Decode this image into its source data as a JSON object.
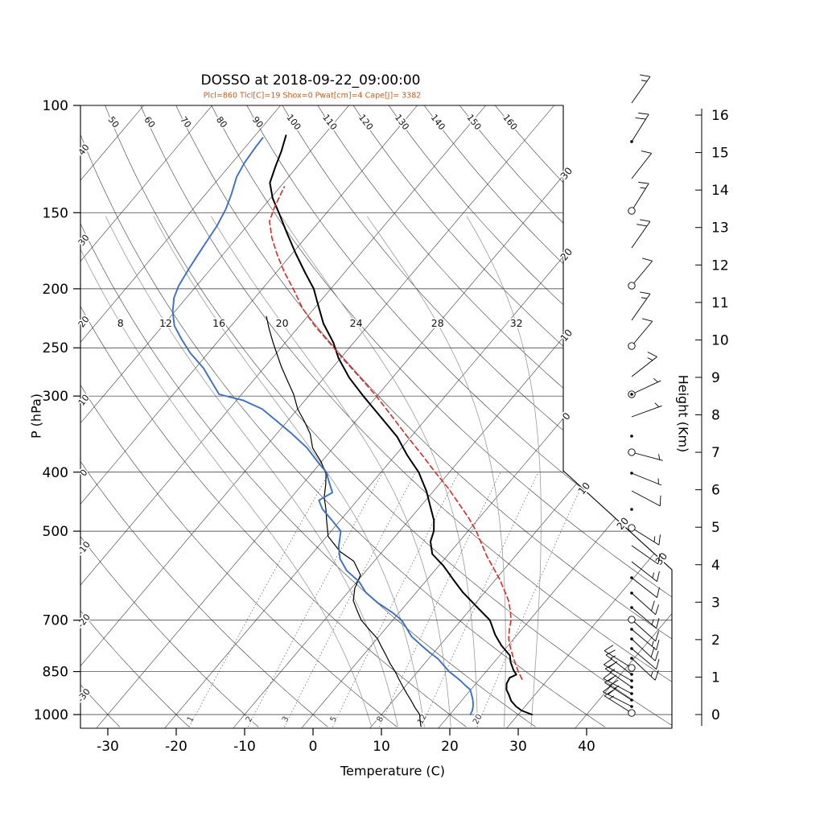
{
  "title": "DOSSO at 2018-09-22_09:00:00",
  "subtitle": "Plcl=860 Tlcl[C]=19 Shox=0 Pwat[cm]=4 Cape[J]= 3382",
  "axes": {
    "pressure_label": "P (hPa)",
    "temperature_label": "Temperature (C)",
    "height_label": "Height (Km)",
    "pressure_ticks": [
      100,
      150,
      200,
      250,
      300,
      400,
      500,
      700,
      850,
      1000
    ],
    "temperature_ticks": [
      -30,
      -20,
      -10,
      0,
      10,
      20,
      30,
      40
    ],
    "height_ticks": [
      0,
      1,
      2,
      3,
      4,
      5,
      6,
      7,
      8,
      9,
      10,
      11,
      12,
      13,
      14,
      15,
      16
    ]
  },
  "background": {
    "isotherm_step": 10,
    "isotherm_range": [
      -110,
      40
    ],
    "dry_adiabats_left_labels": [
      40,
      30,
      20,
      10,
      0,
      -10,
      -20,
      -30
    ],
    "dry_adiabats_top_labels": [
      50,
      60,
      70,
      80,
      90,
      100,
      110,
      120,
      130,
      140,
      150,
      160
    ],
    "isotherm_right_labels": [
      30,
      20,
      10,
      0
    ],
    "isotherm_diag_labels": [
      10,
      20,
      30
    ],
    "moist_adiabats": [
      8,
      12,
      16,
      20,
      24,
      28,
      32
    ],
    "mixing_ratios": [
      1,
      2,
      3,
      5,
      8,
      12,
      20
    ]
  },
  "colors": {
    "temperature": "#000000",
    "dewpoint": "#3d6fc3",
    "parcel": "#d52b2b",
    "wetbulb": "#000000",
    "subtitle": "#c65d1e",
    "grid": "#2b2b2b",
    "moist": "#9a9a9a",
    "mixing": "#555555"
  },
  "chart_data": {
    "type": "skewt",
    "station": "DOSSO",
    "datetime": "2018-09-22_09:00:00",
    "indices": {
      "Plcl": 860,
      "Tlcl_C": 19,
      "Shox": 0,
      "Pwat_cm": 4,
      "Cape_J": 3382
    },
    "temperature_profile": [
      [
        1000,
        32
      ],
      [
        985,
        30
      ],
      [
        970,
        28.7
      ],
      [
        950,
        27.3
      ],
      [
        930,
        26.3
      ],
      [
        910,
        25.2
      ],
      [
        890,
        24.5
      ],
      [
        870,
        24.2
      ],
      [
        860,
        24.8
      ],
      [
        845,
        23.8
      ],
      [
        820,
        22.4
      ],
      [
        800,
        21.5
      ],
      [
        770,
        19
      ],
      [
        740,
        16.8
      ],
      [
        700,
        14.2
      ],
      [
        665,
        10.6
      ],
      [
        630,
        6.8
      ],
      [
        600,
        3.8
      ],
      [
        570,
        0.7
      ],
      [
        545,
        -2.4
      ],
      [
        520,
        -4.2
      ],
      [
        500,
        -5
      ],
      [
        480,
        -6.3
      ],
      [
        455,
        -8.6
      ],
      [
        430,
        -11
      ],
      [
        400,
        -14.5
      ],
      [
        375,
        -18.3
      ],
      [
        350,
        -22
      ],
      [
        325,
        -26.8
      ],
      [
        300,
        -32
      ],
      [
        280,
        -36.3
      ],
      [
        260,
        -40.3
      ],
      [
        245,
        -43
      ],
      [
        228,
        -46.8
      ],
      [
        210,
        -50.4
      ],
      [
        200,
        -52.5
      ],
      [
        188,
        -55.8
      ],
      [
        175,
        -59.5
      ],
      [
        162,
        -63.3
      ],
      [
        150,
        -67
      ],
      [
        142,
        -69.7
      ],
      [
        134,
        -72
      ],
      [
        126,
        -73.2
      ],
      [
        119,
        -74.2
      ],
      [
        112,
        -75.5
      ]
    ],
    "dewpoint_profile": [
      [
        1000,
        23
      ],
      [
        985,
        22.8
      ],
      [
        970,
        22.4
      ],
      [
        955,
        21.9
      ],
      [
        940,
        21.3
      ],
      [
        925,
        20.6
      ],
      [
        910,
        19.9
      ],
      [
        895,
        18.6
      ],
      [
        880,
        17.4
      ],
      [
        865,
        16
      ],
      [
        850,
        14.6
      ],
      [
        830,
        13
      ],
      [
        810,
        11.4
      ],
      [
        790,
        9.3
      ],
      [
        770,
        7.3
      ],
      [
        745,
        4.8
      ],
      [
        720,
        2.9
      ],
      [
        700,
        1.3
      ],
      [
        680,
        -1
      ],
      [
        655,
        -4.4
      ],
      [
        630,
        -7.4
      ],
      [
        605,
        -9.7
      ],
      [
        580,
        -12.9
      ],
      [
        555,
        -15.3
      ],
      [
        530,
        -17
      ],
      [
        500,
        -18.6
      ],
      [
        480,
        -21.2
      ],
      [
        460,
        -24
      ],
      [
        445,
        -25.6
      ],
      [
        432,
        -24.6
      ],
      [
        415,
        -26.4
      ],
      [
        400,
        -28
      ],
      [
        385,
        -30.5
      ],
      [
        365,
        -33.8
      ],
      [
        345,
        -38
      ],
      [
        330,
        -41.5
      ],
      [
        315,
        -45.2
      ],
      [
        305,
        -49
      ],
      [
        298,
        -53.3
      ],
      [
        285,
        -55.8
      ],
      [
        270,
        -58.8
      ],
      [
        255,
        -62.6
      ],
      [
        242,
        -65.6
      ],
      [
        230,
        -68.3
      ],
      [
        218,
        -70.3
      ],
      [
        207,
        -71.8
      ],
      [
        198,
        -72.6
      ],
      [
        186,
        -73.2
      ],
      [
        172,
        -73.8
      ],
      [
        158,
        -74.4
      ],
      [
        148,
        -75.2
      ],
      [
        140,
        -76.2
      ],
      [
        131,
        -77.6
      ],
      [
        124,
        -78.2
      ],
      [
        117,
        -78.5
      ],
      [
        113,
        -78.6
      ]
    ],
    "parcel_profile": [
      [
        875,
        26.2
      ],
      [
        850,
        24.7
      ],
      [
        825,
        23.3
      ],
      [
        800,
        21.9
      ],
      [
        775,
        20.5
      ],
      [
        750,
        19.2
      ],
      [
        725,
        18.2
      ],
      [
        700,
        17.3
      ],
      [
        675,
        16
      ],
      [
        650,
        14.5
      ],
      [
        625,
        12.6
      ],
      [
        600,
        10.6
      ],
      [
        575,
        8.3
      ],
      [
        550,
        5.9
      ],
      [
        525,
        3.6
      ],
      [
        500,
        1.2
      ],
      [
        475,
        -1.6
      ],
      [
        450,
        -4.8
      ],
      [
        425,
        -8.2
      ],
      [
        400,
        -12.1
      ],
      [
        375,
        -16.1
      ],
      [
        350,
        -20.5
      ],
      [
        325,
        -25.1
      ],
      [
        300,
        -30.1
      ],
      [
        280,
        -34.7
      ],
      [
        262,
        -39.2
      ],
      [
        245,
        -43.6
      ],
      [
        230,
        -47.8
      ],
      [
        215,
        -51.8
      ],
      [
        200,
        -55.5
      ],
      [
        188,
        -58.8
      ],
      [
        176,
        -62
      ],
      [
        165,
        -64.9
      ],
      [
        155,
        -67.3
      ],
      [
        147,
        -68.3
      ],
      [
        140,
        -69
      ],
      [
        136,
        -69.4
      ]
    ],
    "wetbulb_profile": [
      [
        1045,
        17.2
      ],
      [
        1020,
        16.3
      ],
      [
        1000,
        15.6
      ],
      [
        975,
        14.1
      ],
      [
        950,
        12.7
      ],
      [
        925,
        11.2
      ],
      [
        900,
        9.7
      ],
      [
        875,
        8.2
      ],
      [
        850,
        6.7
      ],
      [
        825,
        5
      ],
      [
        800,
        3.4
      ],
      [
        775,
        1.7
      ],
      [
        750,
        0
      ],
      [
        725,
        -2.3
      ],
      [
        700,
        -4.6
      ],
      [
        675,
        -6.4
      ],
      [
        650,
        -8.2
      ],
      [
        620,
        -9.5
      ],
      [
        590,
        -10.3
      ],
      [
        560,
        -13
      ],
      [
        540,
        -16.2
      ],
      [
        510,
        -19.8
      ],
      [
        480,
        -22
      ],
      [
        460,
        -23.5
      ],
      [
        440,
        -25.2
      ],
      [
        420,
        -26.5
      ],
      [
        403,
        -27.8
      ],
      [
        385,
        -30
      ],
      [
        365,
        -33
      ],
      [
        346,
        -35.1
      ],
      [
        330,
        -37.5
      ],
      [
        315,
        -40
      ],
      [
        298,
        -42.4
      ],
      [
        283,
        -45
      ],
      [
        268,
        -47.7
      ],
      [
        256,
        -49.8
      ],
      [
        244,
        -52
      ],
      [
        232,
        -54.2
      ],
      [
        222,
        -56
      ]
    ],
    "wind_barbs": [
      [
        128,
        55,
        1,
        1,
        0
      ],
      [
        176,
        58,
        2,
        0,
        1
      ],
      [
        222,
        52,
        1,
        0,
        0
      ],
      [
        262,
        58,
        1,
        1,
        2
      ],
      [
        308,
        55,
        2,
        0,
        0
      ],
      [
        355,
        50,
        1,
        0,
        2
      ],
      [
        398,
        55,
        1,
        1,
        0
      ],
      [
        430,
        50,
        1,
        0,
        2
      ],
      [
        468,
        38,
        1,
        1,
        0
      ],
      [
        490,
        25,
        0,
        1,
        3
      ],
      [
        518,
        20,
        0,
        1,
        0
      ],
      [
        542,
        0,
        0,
        0,
        1
      ],
      [
        562,
        -15,
        0,
        1,
        2
      ],
      [
        588,
        -22,
        0,
        1,
        1
      ],
      [
        610,
        -28,
        1,
        0,
        0
      ],
      [
        633,
        0,
        0,
        0,
        1
      ],
      [
        656,
        -32,
        1,
        1,
        2
      ],
      [
        678,
        -35,
        1,
        0,
        0
      ],
      [
        698,
        -38,
        1,
        1,
        0
      ],
      [
        718,
        -38,
        1,
        0,
        1
      ],
      [
        737,
        -42,
        2,
        0,
        1
      ],
      [
        755,
        -40,
        1,
        1,
        1
      ],
      [
        770,
        -42,
        1,
        0,
        2
      ],
      [
        782,
        -40,
        1,
        1,
        1
      ],
      [
        794,
        -43,
        2,
        0,
        1
      ],
      [
        806,
        -40,
        1,
        0,
        1
      ],
      [
        818,
        -43,
        1,
        1,
        1
      ],
      [
        830,
        148,
        1,
        0,
        2
      ],
      [
        838,
        143,
        1,
        1,
        1
      ],
      [
        846,
        150,
        2,
        0,
        1
      ],
      [
        854,
        145,
        1,
        1,
        1
      ],
      [
        862,
        152,
        2,
        0,
        1
      ],
      [
        870,
        147,
        2,
        1,
        1
      ],
      [
        878,
        153,
        2,
        0,
        1
      ],
      [
        886,
        148,
        1,
        1,
        2
      ]
    ]
  }
}
